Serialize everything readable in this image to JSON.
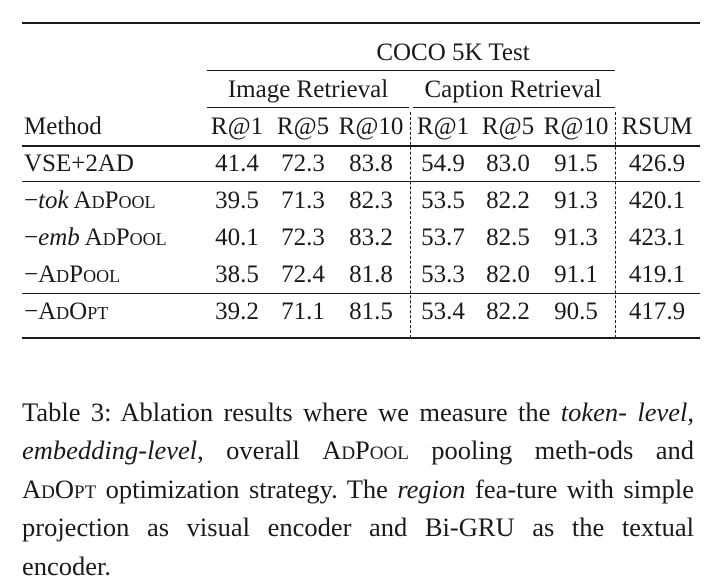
{
  "table": {
    "group_header": "COCO 5K Test",
    "subgroups": [
      "Image Retrieval",
      "Caption Retrieval"
    ],
    "columns": [
      "Method",
      "R@1",
      "R@5",
      "R@10",
      "R@1",
      "R@5",
      "R@10",
      "RSUM"
    ],
    "rows": [
      {
        "method_prefix": "",
        "method_italic": "",
        "method_sc": "VSE+2AD",
        "values": [
          "41.4",
          "72.3",
          "83.8",
          "54.9",
          "83.0",
          "91.5",
          "426.9"
        ]
      },
      {
        "method_prefix": "−",
        "method_italic": "tok",
        "method_sc": " AdPool",
        "values": [
          "39.5",
          "71.3",
          "82.3",
          "53.5",
          "82.2",
          "91.3",
          "420.1"
        ]
      },
      {
        "method_prefix": "−",
        "method_italic": "emb",
        "method_sc": " AdPool",
        "values": [
          "40.1",
          "72.3",
          "83.2",
          "53.7",
          "82.5",
          "91.3",
          "423.1"
        ]
      },
      {
        "method_prefix": "−",
        "method_italic": "",
        "method_sc": "AdPool",
        "values": [
          "38.5",
          "72.4",
          "81.8",
          "53.3",
          "82.0",
          "91.1",
          "419.1"
        ]
      },
      {
        "method_prefix": "−",
        "method_italic": "",
        "method_sc": "AdOpt",
        "values": [
          "39.2",
          "71.1",
          "81.5",
          "53.4",
          "82.2",
          "90.5",
          "417.9"
        ]
      }
    ]
  },
  "caption": {
    "label": "Table 3:",
    "t1": " Ablation results where we measure the ",
    "i1": "token-",
    "i2": "level",
    "t2": ", ",
    "i3": "embedding-level",
    "t3": ", overall ",
    "sc1": "AdPool",
    "t4": " pooling meth-ods and ",
    "sc2": "AdOpt",
    "t5": " optimization strategy. The ",
    "i4": "region",
    "t6": " fea-ture with simple projection as visual encoder and Bi-GRU as the textual encoder."
  }
}
